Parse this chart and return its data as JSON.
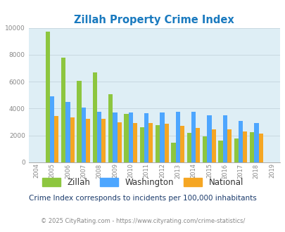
{
  "title": "Zillah Property Crime Index",
  "years": [
    "2004",
    "2005",
    "2006",
    "2007",
    "2008",
    "2009",
    "2010",
    "2011",
    "2012",
    "2013",
    "2014",
    "2015",
    "2016",
    "2017",
    "2018",
    "2019"
  ],
  "zillah": [
    0,
    9700,
    7800,
    6050,
    6700,
    5050,
    3600,
    2600,
    2750,
    1480,
    2200,
    1950,
    1620,
    1780,
    2230,
    0
  ],
  "washington": [
    0,
    4900,
    4500,
    4050,
    3750,
    3700,
    3700,
    3650,
    3700,
    3750,
    3750,
    3500,
    3500,
    3100,
    2950,
    0
  ],
  "national": [
    0,
    3450,
    3350,
    3250,
    3250,
    3000,
    2950,
    2900,
    2870,
    2700,
    2550,
    2450,
    2450,
    2300,
    2150,
    0
  ],
  "zillah_color": "#8dc63f",
  "washington_color": "#4da6ff",
  "national_color": "#f5a623",
  "bg_color": "#deeef5",
  "title_color": "#1a7abf",
  "ylim": [
    0,
    10000
  ],
  "yticks": [
    0,
    2000,
    4000,
    6000,
    8000,
    10000
  ],
  "subtitle": "Crime Index corresponds to incidents per 100,000 inhabitants",
  "footer": "© 2025 CityRating.com - https://www.cityrating.com/crime-statistics/",
  "subtitle_color": "#1a3a6b",
  "footer_color": "#888888",
  "tick_color": "#888888",
  "grid_color": "#c8d8e0"
}
